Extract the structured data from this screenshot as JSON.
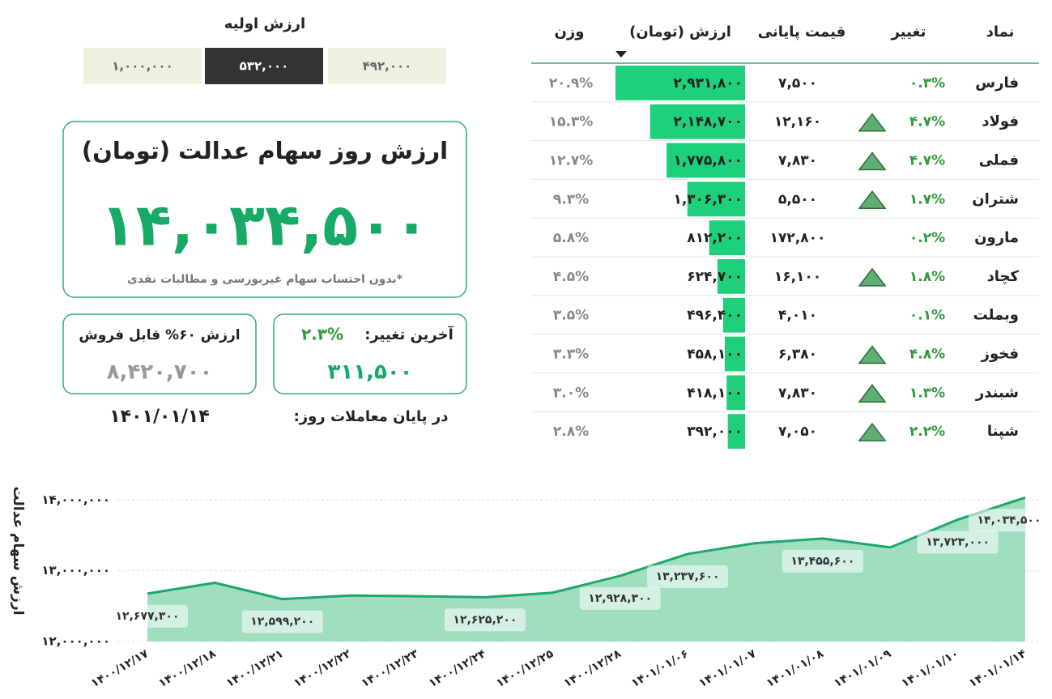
{
  "initial_value": {
    "title": "ارزش اولیه",
    "options": [
      "۱,۰۰۰,۰۰۰",
      "۵۳۲,۰۰۰",
      "۴۹۲,۰۰۰"
    ],
    "selected_index": 1
  },
  "main_card": {
    "title": "ارزش روز سهام عدالت (تومان)",
    "value": "۱۴,۰۳۴,۵۰۰",
    "note": "*بدون احتساب سهام غیربورسی و مطالبات نقدی"
  },
  "change_card": {
    "label": "آخرین تغییر:",
    "percent": "۲.۳%",
    "value": "۳۱۱,۵۰۰"
  },
  "sellable_card": {
    "label": "ارزش ۶۰% قابل فروش",
    "value": "۸,۴۲۰,۷۰۰"
  },
  "date_line": {
    "label": "در پایان معاملات روز:",
    "date": "۱۴۰۱/۰۱/۱۴"
  },
  "table": {
    "headers": [
      "نماد",
      "تغییر",
      "قیمت پایانی",
      "ارزش (تومان)",
      "وزن"
    ],
    "rows": [
      {
        "symbol": "فارس",
        "change": "۰.۳%",
        "arrow": false,
        "price": "۷,۵۰۰",
        "value": 2931800,
        "value_label": "۲,۹۳۱,۸۰۰",
        "weight": "۲۰.۹%"
      },
      {
        "symbol": "فولاد",
        "change": "۴.۷%",
        "arrow": true,
        "price": "۱۲,۱۶۰",
        "value": 2148700,
        "value_label": "۲,۱۴۸,۷۰۰",
        "weight": "۱۵.۳%"
      },
      {
        "symbol": "فملی",
        "change": "۴.۷%",
        "arrow": true,
        "price": "۷,۸۳۰",
        "value": 1775800,
        "value_label": "۱,۷۷۵,۸۰۰",
        "weight": "۱۲.۷%"
      },
      {
        "symbol": "شتران",
        "change": "۱.۷%",
        "arrow": true,
        "price": "۵,۵۰۰",
        "value": 1306300,
        "value_label": "۱,۳۰۶,۳۰۰",
        "weight": "۹.۳%"
      },
      {
        "symbol": "مارون",
        "change": "۰.۲%",
        "arrow": false,
        "price": "۱۷۲,۸۰۰",
        "value": 812200,
        "value_label": "۸۱۲,۲۰۰",
        "weight": "۵.۸%"
      },
      {
        "symbol": "کچاد",
        "change": "۱.۸%",
        "arrow": true,
        "price": "۱۶,۱۰۰",
        "value": 624700,
        "value_label": "۶۲۴,۷۰۰",
        "weight": "۴.۵%"
      },
      {
        "symbol": "وبملت",
        "change": "۰.۱%",
        "arrow": false,
        "price": "۴,۰۱۰",
        "value": 496400,
        "value_label": "۴۹۶,۴۰۰",
        "weight": "۳.۵%"
      },
      {
        "symbol": "فخوز",
        "change": "۴.۸%",
        "arrow": true,
        "price": "۶,۳۸۰",
        "value": 458100,
        "value_label": "۴۵۸,۱۰۰",
        "weight": "۳.۳%"
      },
      {
        "symbol": "شبندر",
        "change": "۱.۳%",
        "arrow": true,
        "price": "۷,۸۳۰",
        "value": 418100,
        "value_label": "۴۱۸,۱۰۰",
        "weight": "۳.۰%"
      },
      {
        "symbol": "شپنا",
        "change": "۲.۲%",
        "arrow": true,
        "price": "۷,۰۵۰",
        "value": 392000,
        "value_label": "۳۹۲,۰۰۰",
        "weight": "۲.۸%"
      }
    ]
  },
  "chart_data": {
    "type": "area",
    "y_label": "ارزش سهام عدالت",
    "categories": [
      "۱۴۰۰/۱۲/۱۷",
      "۱۴۰۰/۱۲/۱۸",
      "۱۴۰۰/۱۲/۲۱",
      "۱۴۰۰/۱۲/۲۲",
      "۱۴۰۰/۱۲/۲۳",
      "۱۴۰۰/۱۲/۲۴",
      "۱۴۰۰/۱۲/۲۵",
      "۱۴۰۰/۱۲/۲۸",
      "۱۴۰۱/۰۱/۰۶",
      "۱۴۰۱/۰۱/۰۷",
      "۱۴۰۱/۰۱/۰۸",
      "۱۴۰۱/۰۱/۰۹",
      "۱۴۰۱/۰۱/۱۰",
      "۱۴۰۱/۰۱/۱۴"
    ],
    "values": [
      12677300,
      12830000,
      12599200,
      12650000,
      12640000,
      12625200,
      12690000,
      12928300,
      13237600,
      13390000,
      13455600,
      13330000,
      13723000,
      14034500
    ],
    "value_labels": [
      "۱۲,۶۷۷,۳۰۰",
      null,
      "۱۲,۵۹۹,۲۰۰",
      null,
      null,
      "۱۲,۶۲۵,۲۰۰",
      null,
      "۱۲,۹۲۸,۳۰۰",
      "۱۳,۲۳۷,۶۰۰",
      null,
      "۱۳,۴۵۵,۶۰۰",
      null,
      "۱۳,۷۲۳,۰۰۰",
      "۱۴,۰۳۴,۵۰۰"
    ],
    "color": "#1fa66a",
    "fill": "#8fd8b5",
    "ylim": [
      12000000,
      14050000
    ],
    "yticks": [
      {
        "value": 12000000,
        "label": "۱۲,۰۰۰,۰۰۰"
      },
      {
        "value": 13000000,
        "label": "۱۳,۰۰۰,۰۰۰"
      },
      {
        "value": 14000000,
        "label": "۱۴,۰۰۰,۰۰۰"
      }
    ],
    "grid": true
  }
}
